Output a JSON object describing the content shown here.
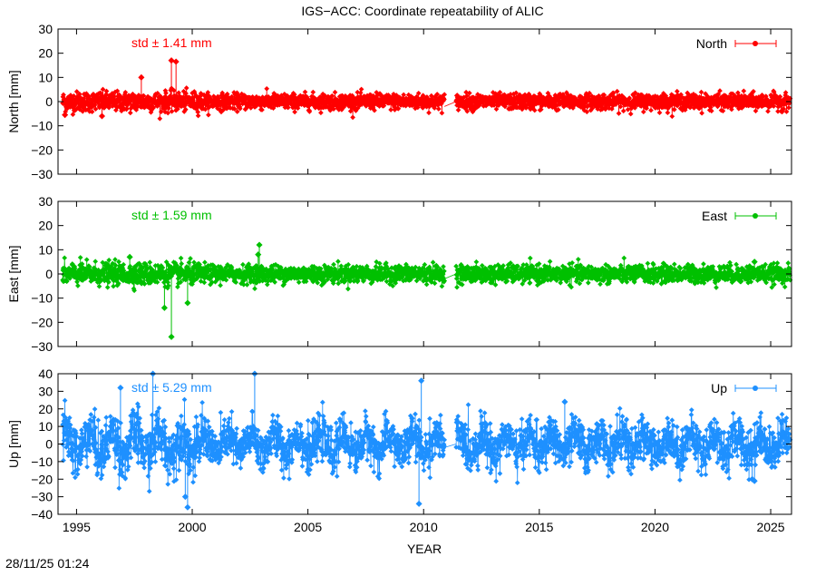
{
  "title": "IGS−ACC: Coordinate repeatability of ALIC",
  "timestamp": "28/11/25 01:24",
  "colors": {
    "north": "#ff0000",
    "east": "#00c000",
    "up": "#1e90ff",
    "axis": "#000000"
  },
  "chart_data": [
    {
      "type": "scatter",
      "id": "north",
      "ylabel": "North [mm]",
      "ylim": [
        -30,
        30
      ],
      "yticks": [
        "30",
        "20",
        "10",
        "0",
        "−10",
        "−20",
        "−30"
      ],
      "ytick_values": [
        30,
        20,
        10,
        0,
        -10,
        -20,
        -30
      ],
      "xlim": [
        1994.2,
        2025.9
      ],
      "legend": "North",
      "legend_position": "top-right",
      "annotation": "std ± 1.41 mm",
      "series_name": "North",
      "color": "#ff0000",
      "data_gap": [
        2010.9,
        2011.4
      ],
      "noise_std": 1.41,
      "outliers": [
        [
          1997.8,
          10
        ],
        [
          1999.1,
          17
        ],
        [
          1999.3,
          16.5
        ],
        [
          1994.5,
          -5.5
        ],
        [
          1996.1,
          -6
        ]
      ]
    },
    {
      "type": "scatter",
      "id": "east",
      "ylabel": "East [mm]",
      "ylim": [
        -30,
        30
      ],
      "yticks": [
        "30",
        "20",
        "10",
        "0",
        "−10",
        "−20",
        "−30"
      ],
      "ytick_values": [
        30,
        20,
        10,
        0,
        -10,
        -20,
        -30
      ],
      "xlim": [
        1994.2,
        2025.9
      ],
      "legend": "East",
      "legend_position": "top-right",
      "annotation": "std ± 1.59 mm",
      "series_name": "East",
      "color": "#00c000",
      "data_gap": [
        2010.9,
        2011.4
      ],
      "noise_std": 1.59,
      "outliers": [
        [
          2002.9,
          12
        ],
        [
          2002.85,
          8
        ],
        [
          1999.1,
          -26
        ],
        [
          1998.8,
          -14
        ],
        [
          1999.8,
          -12
        ],
        [
          1997.3,
          7
        ],
        [
          2024.3,
          5
        ]
      ]
    },
    {
      "type": "scatter",
      "id": "up",
      "ylabel": "Up [mm]",
      "ylim": [
        -40,
        40
      ],
      "yticks": [
        "40",
        "30",
        "20",
        "10",
        "0",
        "−10",
        "−20",
        "−30",
        "−40"
      ],
      "ytick_values": [
        40,
        30,
        20,
        10,
        0,
        -10,
        -20,
        -30,
        -40
      ],
      "xlim": [
        1994.2,
        2025.9
      ],
      "xticks": [
        "1995",
        "2000",
        "2005",
        "2010",
        "2015",
        "2020",
        "2025"
      ],
      "xtick_values": [
        1995,
        2000,
        2005,
        2010,
        2015,
        2020,
        2025
      ],
      "xlabel": "YEAR",
      "legend": "Up",
      "legend_position": "top-right",
      "annotation": "std ± 5.29 mm",
      "series_name": "Up",
      "color": "#1e90ff",
      "data_gap": [
        2010.9,
        2011.4
      ],
      "noise_std": 5.29,
      "seasonal_amplitude": 5,
      "outliers": [
        [
          1996.9,
          32
        ],
        [
          1998.3,
          40
        ],
        [
          2002.7,
          40
        ],
        [
          2009.9,
          36
        ],
        [
          2009.8,
          -34
        ],
        [
          1999.8,
          -36
        ],
        [
          1999.7,
          -30
        ],
        [
          2016.1,
          24
        ],
        [
          2024.3,
          -21
        ],
        [
          2024.2,
          -20
        ]
      ]
    }
  ]
}
